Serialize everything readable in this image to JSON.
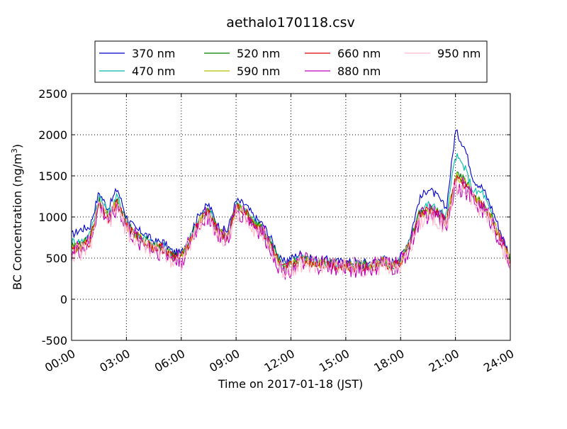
{
  "chart_data": {
    "type": "line",
    "title": "aethalo170118.csv",
    "xlabel": "Time on 2017-01-18 (JST)",
    "ylabel_main": "BC Concentration (ng/m",
    "ylabel_sup": "3",
    "ylabel_close": ")",
    "xlim_hours": [
      0,
      24
    ],
    "ylim": [
      -500,
      2500
    ],
    "yticks": [
      -500,
      0,
      500,
      1000,
      1500,
      2000,
      2500
    ],
    "xticks": [
      {
        "hour": 0,
        "label": "00:00"
      },
      {
        "hour": 3,
        "label": "03:00"
      },
      {
        "hour": 6,
        "label": "06:00"
      },
      {
        "hour": 9,
        "label": "09:00"
      },
      {
        "hour": 12,
        "label": "12:00"
      },
      {
        "hour": 15,
        "label": "15:00"
      },
      {
        "hour": 18,
        "label": "18:00"
      },
      {
        "hour": 21,
        "label": "21:00"
      },
      {
        "hour": 24,
        "label": "24:00"
      }
    ],
    "grid": true,
    "legend_position": "top",
    "x_hours": [
      0,
      0.5,
      1,
      1.5,
      2,
      2.5,
      3,
      3.5,
      4,
      4.5,
      5,
      5.5,
      6,
      6.5,
      7,
      7.5,
      8,
      8.5,
      9,
      9.5,
      10,
      10.5,
      11,
      11.5,
      12,
      12.5,
      13,
      13.5,
      14,
      14.5,
      15,
      15.5,
      16,
      16.5,
      17,
      17.5,
      18,
      18.5,
      19,
      19.5,
      20,
      20.5,
      21,
      21.5,
      22,
      22.5,
      23,
      23.5,
      24
    ],
    "series": [
      {
        "name": "370 nm",
        "color": "#0000cc",
        "noise": 50,
        "values": [
          780,
          850,
          880,
          1300,
          1100,
          1350,
          1000,
          850,
          800,
          700,
          700,
          580,
          560,
          800,
          1050,
          1150,
          900,
          820,
          1200,
          1150,
          1000,
          900,
          700,
          450,
          500,
          550,
          500,
          480,
          480,
          460,
          450,
          450,
          450,
          450,
          500,
          450,
          520,
          750,
          1200,
          1350,
          1250,
          1100,
          2050,
          1850,
          1450,
          1350,
          1100,
          800,
          520
        ]
      },
      {
        "name": "470 nm",
        "color": "#00bbaa",
        "noise": 55,
        "values": [
          700,
          700,
          780,
          1250,
          1050,
          1250,
          950,
          800,
          750,
          650,
          650,
          550,
          520,
          750,
          980,
          1100,
          850,
          750,
          1150,
          1100,
          950,
          850,
          650,
          400,
          450,
          500,
          480,
          460,
          450,
          430,
          430,
          430,
          420,
          420,
          480,
          420,
          480,
          700,
          1080,
          1150,
          1100,
          1000,
          1750,
          1600,
          1300,
          1300,
          1000,
          750,
          500
        ]
      },
      {
        "name": "520 nm",
        "color": "#008000",
        "noise": 60,
        "values": [
          650,
          650,
          730,
          1200,
          1000,
          1200,
          920,
          780,
          720,
          640,
          640,
          540,
          510,
          740,
          970,
          1080,
          840,
          740,
          1130,
          1080,
          930,
          830,
          630,
          380,
          430,
          480,
          470,
          450,
          440,
          420,
          420,
          420,
          410,
          410,
          470,
          410,
          470,
          680,
          1020,
          1100,
          1050,
          950,
          1500,
          1450,
          1250,
          1150,
          980,
          720,
          480
        ]
      },
      {
        "name": "590 nm",
        "color": "#bbbb00",
        "noise": 60,
        "values": [
          640,
          640,
          720,
          1190,
          990,
          1190,
          910,
          770,
          710,
          630,
          630,
          530,
          500,
          730,
          960,
          1070,
          830,
          730,
          1120,
          1070,
          920,
          820,
          620,
          370,
          420,
          470,
          460,
          440,
          430,
          410,
          410,
          410,
          400,
          400,
          460,
          400,
          460,
          670,
          1010,
          1090,
          1040,
          940,
          1480,
          1430,
          1240,
          1140,
          970,
          710,
          470
        ]
      },
      {
        "name": "660 nm",
        "color": "#dd0000",
        "noise": 65,
        "values": [
          600,
          620,
          700,
          1180,
          980,
          1180,
          900,
          760,
          700,
          620,
          620,
          520,
          490,
          720,
          950,
          1060,
          820,
          720,
          1110,
          1060,
          910,
          810,
          610,
          360,
          410,
          460,
          450,
          430,
          420,
          400,
          400,
          400,
          390,
          390,
          450,
          390,
          450,
          660,
          1000,
          1080,
          1030,
          930,
          1450,
          1400,
          1220,
          1120,
          960,
          700,
          460
        ]
      },
      {
        "name": "880 nm",
        "color": "#bb00bb",
        "noise": 130,
        "values": [
          580,
          600,
          680,
          1150,
          950,
          1150,
          870,
          740,
          680,
          600,
          600,
          500,
          470,
          700,
          920,
          1030,
          800,
          700,
          1080,
          1030,
          890,
          790,
          590,
          340,
          400,
          450,
          440,
          420,
          410,
          390,
          390,
          390,
          380,
          380,
          440,
          380,
          440,
          640,
          970,
          1050,
          1000,
          900,
          1400,
          1350,
          1200,
          1100,
          950,
          690,
          450
        ]
      },
      {
        "name": "950 nm",
        "color": "#ffbbcc",
        "noise": 120,
        "values": [
          560,
          580,
          660,
          1120,
          930,
          1120,
          850,
          720,
          660,
          590,
          590,
          490,
          460,
          690,
          900,
          1010,
          780,
          690,
          1060,
          1010,
          870,
          770,
          570,
          330,
          390,
          440,
          430,
          410,
          400,
          380,
          380,
          380,
          370,
          370,
          430,
          370,
          430,
          620,
          950,
          1030,
          980,
          880,
          1380,
          1330,
          1180,
          1080,
          930,
          680,
          440
        ]
      }
    ]
  }
}
